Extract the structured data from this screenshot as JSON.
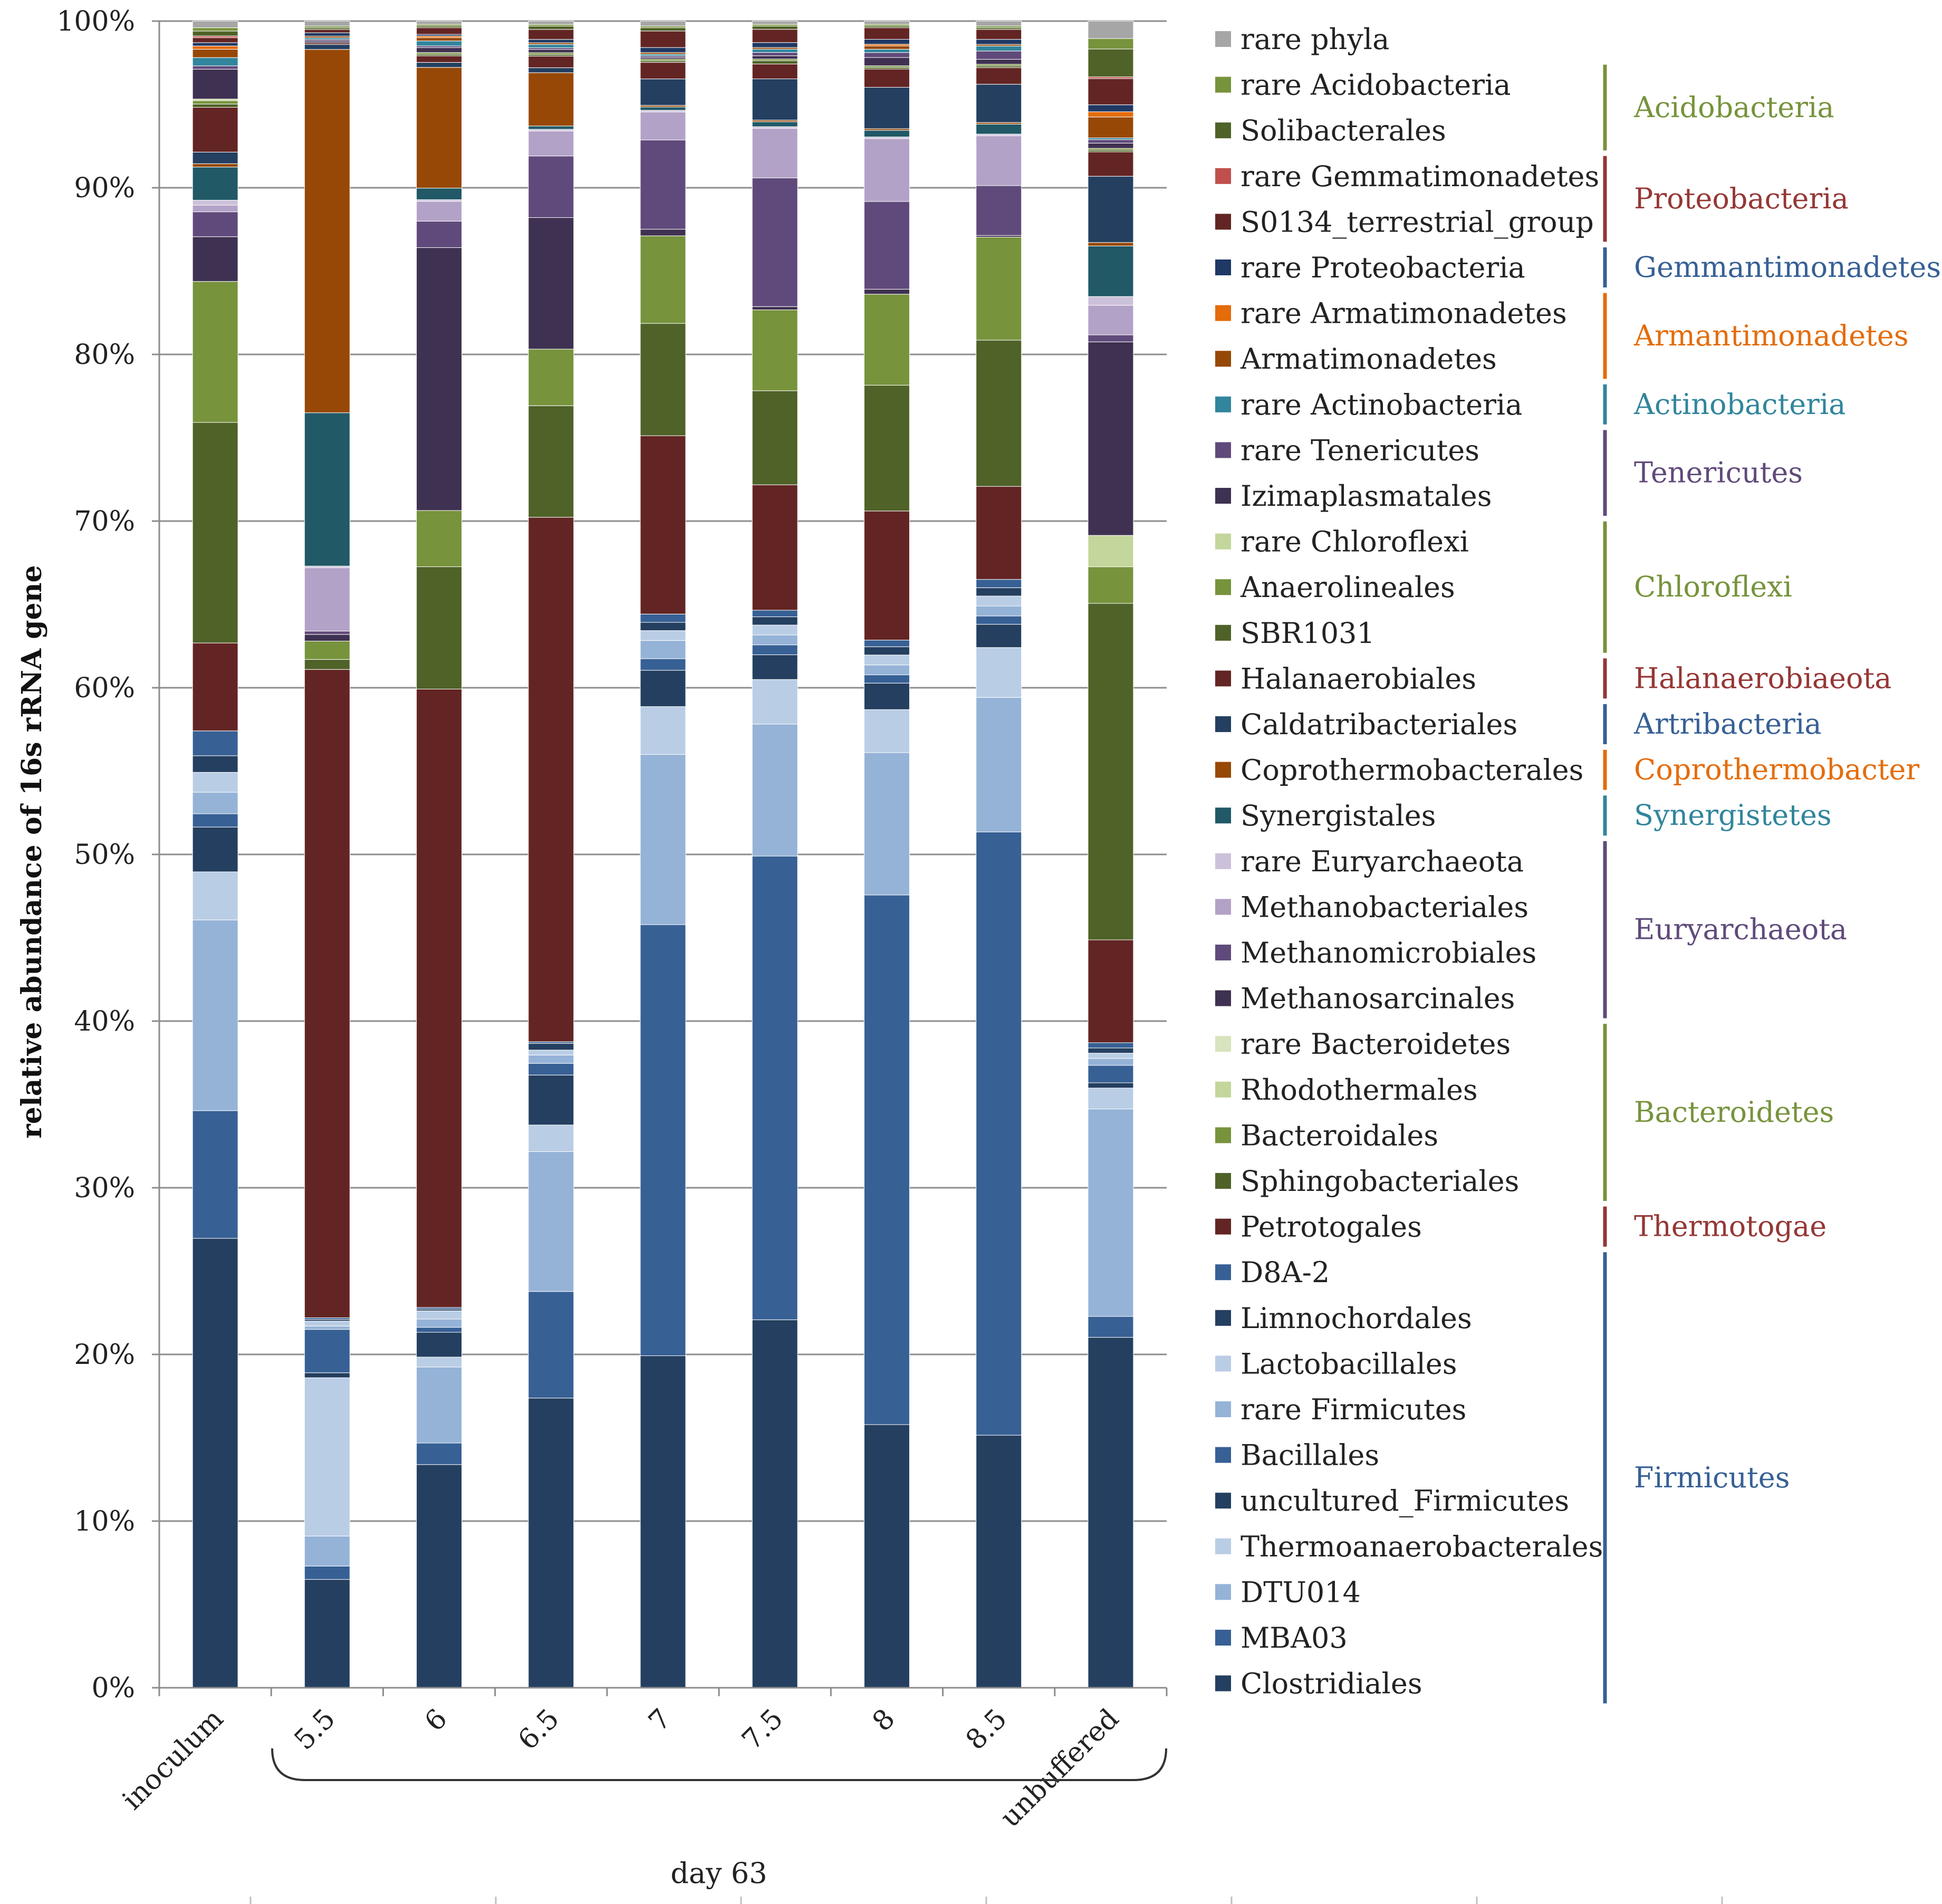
{
  "chart_data": {
    "type": "bar",
    "stacked": true,
    "normalized": true,
    "title": "",
    "ylabel": "relative abundance of 16s rRNA gene",
    "xlabel": "day 63",
    "ylim": [
      0,
      100
    ],
    "yticks": [
      "0%",
      "10%",
      "20%",
      "30%",
      "40%",
      "50%",
      "60%",
      "70%",
      "80%",
      "90%",
      "100%"
    ],
    "grid": true,
    "legend_position": "right",
    "categories": [
      "inoculum",
      "5.5",
      "6",
      "6.5",
      "7",
      "7.5",
      "8",
      "8.5",
      "unbuffered"
    ],
    "series": [
      {
        "name": "Clostridiales",
        "color": "#243F60",
        "values": [
          27.1,
          6.5,
          13.5,
          17.4,
          20.1,
          22.3,
          15.9,
          15.2,
          20.1
        ]
      },
      {
        "name": "MBA03",
        "color": "#376095",
        "values": [
          7.7,
          0.8,
          1.3,
          6.4,
          26.1,
          28.1,
          32.0,
          36.3,
          1.2
        ]
      },
      {
        "name": "DTU014",
        "color": "#95B3D7",
        "values": [
          11.5,
          1.8,
          4.6,
          8.4,
          10.3,
          8.0,
          8.6,
          8.1,
          11.9
        ]
      },
      {
        "name": "Thermoanaerobacterales",
        "color": "#B9CDE5",
        "values": [
          2.9,
          9.5,
          0.6,
          1.6,
          2.9,
          2.7,
          2.6,
          3.0,
          1.2
        ]
      },
      {
        "name": "uncultured_Firmicutes",
        "color": "#243F60",
        "values": [
          2.7,
          0.3,
          1.5,
          3.0,
          2.2,
          1.5,
          1.6,
          1.4,
          0.3
        ]
      },
      {
        "name": "Bacillales",
        "color": "#376095",
        "values": [
          0.8,
          2.6,
          0.3,
          0.7,
          0.7,
          0.6,
          0.5,
          0.5,
          1.0
        ]
      },
      {
        "name": "rare Firmicutes",
        "color": "#95B3D7",
        "values": [
          1.3,
          0.2,
          0.5,
          0.5,
          1.1,
          0.6,
          0.6,
          0.6,
          0.4
        ]
      },
      {
        "name": "Lactobacillales",
        "color": "#B9CDE5",
        "values": [
          1.2,
          0.3,
          0.5,
          0.3,
          0.6,
          0.6,
          0.6,
          0.6,
          0.3
        ]
      },
      {
        "name": "Limnochordales",
        "color": "#243F60",
        "values": [
          1.0,
          0.1,
          0.1,
          0.4,
          0.5,
          0.5,
          0.5,
          0.5,
          0.3
        ]
      },
      {
        "name": "D8A-2",
        "color": "#376095",
        "values": [
          1.5,
          0.1,
          0.1,
          0.1,
          0.5,
          0.4,
          0.4,
          0.5,
          0.3
        ]
      },
      {
        "name": "Petrotogales",
        "color": "#632523",
        "values": [
          5.3,
          38.9,
          37.4,
          31.5,
          10.8,
          7.6,
          7.8,
          5.6,
          5.9
        ]
      },
      {
        "name": "Sphingobacteriales",
        "color": "#4F6228",
        "values": [
          13.3,
          0.6,
          7.4,
          6.7,
          6.8,
          5.7,
          7.6,
          8.8,
          19.3
        ]
      },
      {
        "name": "Bacteroidales",
        "color": "#77933C",
        "values": [
          8.5,
          1.1,
          3.4,
          3.4,
          5.3,
          4.9,
          5.5,
          6.2,
          2.1
        ]
      },
      {
        "name": "Rhodothermales",
        "color": "#C3D69B",
        "values": [
          0.0,
          0.0,
          0.0,
          0.0,
          0.0,
          0.0,
          0.0,
          0.0,
          1.8
        ]
      },
      {
        "name": "rare Bacteroidetes",
        "color": "#D7E4BD",
        "values": [
          0.0,
          0.0,
          0.0,
          0.0,
          0.0,
          0.0,
          0.0,
          0.0,
          0.0
        ]
      },
      {
        "name": "Methanosarcinales",
        "color": "#3F3151",
        "values": [
          2.7,
          0.4,
          15.9,
          7.9,
          0.4,
          0.2,
          0.3,
          0.1,
          11.1
        ]
      },
      {
        "name": "Methanomicrobiales",
        "color": "#604A7B",
        "values": [
          1.5,
          0.2,
          1.6,
          3.7,
          5.4,
          7.8,
          5.3,
          3.0,
          0.4
        ]
      },
      {
        "name": "Methanobacteriales",
        "color": "#B3A2C7",
        "values": [
          0.4,
          3.8,
          1.2,
          1.5,
          1.7,
          3.0,
          3.8,
          3.0,
          1.7
        ]
      },
      {
        "name": "rare Euryarchaeota",
        "color": "#CCC1DA",
        "values": [
          0.3,
          0.1,
          0.1,
          0.1,
          0.1,
          0.1,
          0.1,
          0.1,
          0.5
        ]
      },
      {
        "name": "Synergistales",
        "color": "#215967",
        "values": [
          2.0,
          9.2,
          0.7,
          0.2,
          0.2,
          0.3,
          0.4,
          0.6,
          2.9
        ]
      },
      {
        "name": "Coprothermobacterales",
        "color": "#974806",
        "values": [
          0.2,
          21.8,
          7.3,
          3.2,
          0.1,
          0.1,
          0.1,
          0.1,
          0.2
        ]
      },
      {
        "name": "Caldatribacteriales",
        "color": "#243F60",
        "values": [
          0.7,
          0.3,
          0.3,
          0.3,
          1.6,
          2.5,
          2.5,
          2.3,
          3.8
        ]
      },
      {
        "name": "Halanaerobiales",
        "color": "#632523",
        "values": [
          2.7,
          0.1,
          0.4,
          0.7,
          1.0,
          0.9,
          1.1,
          1.0,
          1.4
        ]
      },
      {
        "name": "SBR1031",
        "color": "#4F6228",
        "values": [
          0.2,
          0.0,
          0.1,
          0.1,
          0.1,
          0.2,
          0.1,
          0.1,
          0.1
        ]
      },
      {
        "name": "Anaerolineales",
        "color": "#77933C",
        "values": [
          0.2,
          0.0,
          0.1,
          0.1,
          0.1,
          0.1,
          0.1,
          0.1,
          0.1
        ]
      },
      {
        "name": "rare Chloroflexi",
        "color": "#C3D69B",
        "values": [
          0.1,
          0.0,
          0.0,
          0.0,
          0.0,
          0.0,
          0.0,
          0.0,
          0.0
        ]
      },
      {
        "name": "Izimaplasmatales",
        "color": "#3F3151",
        "values": [
          1.8,
          0.1,
          0.3,
          0.2,
          0.1,
          0.2,
          0.5,
          0.3,
          0.3
        ]
      },
      {
        "name": "rare Tenericutes",
        "color": "#604A7B",
        "values": [
          0.2,
          0.1,
          0.1,
          0.1,
          0.1,
          0.2,
          0.3,
          0.5,
          0.2
        ]
      },
      {
        "name": "rare Actinobacteria",
        "color": "#31859C",
        "values": [
          0.5,
          0.1,
          0.3,
          0.2,
          0.1,
          0.2,
          0.2,
          0.3,
          0.1
        ]
      },
      {
        "name": "Armatimonadetes",
        "color": "#974806",
        "values": [
          0.5,
          0.1,
          0.2,
          0.1,
          0.1,
          0.1,
          0.2,
          0.1,
          1.2
        ]
      },
      {
        "name": "rare Armatimonadetes",
        "color": "#E46C0A",
        "values": [
          0.2,
          0.0,
          0.1,
          0.0,
          0.0,
          0.0,
          0.1,
          0.0,
          0.3
        ]
      },
      {
        "name": "rare Proteobacteria",
        "color": "#1F3864",
        "values": [
          0.2,
          0.2,
          0.1,
          0.2,
          0.3,
          0.3,
          0.3,
          0.3,
          0.4
        ]
      },
      {
        "name": "S0134_terrestrial_group",
        "color": "#632523",
        "values": [
          0.3,
          0.2,
          0.4,
          0.6,
          1.0,
          0.8,
          0.7,
          0.6,
          1.5
        ]
      },
      {
        "name": "rare Gemmatimonadetes",
        "color": "#C0504D",
        "values": [
          0.1,
          0.0,
          0.0,
          0.0,
          0.0,
          0.0,
          0.0,
          0.0,
          0.1
        ]
      },
      {
        "name": "Solibacterales",
        "color": "#4F6228",
        "values": [
          0.3,
          0.1,
          0.1,
          0.2,
          0.2,
          0.2,
          0.1,
          0.1,
          1.6
        ]
      },
      {
        "name": "rare Acidobacteria",
        "color": "#77933C",
        "values": [
          0.2,
          0.1,
          0.1,
          0.1,
          0.1,
          0.1,
          0.1,
          0.1,
          0.6
        ]
      },
      {
        "name": "rare phyla",
        "color": "#A6A6A6",
        "values": [
          0.4,
          0.3,
          0.2,
          0.2,
          0.3,
          0.2,
          0.2,
          0.3,
          1.0
        ]
      }
    ],
    "legend_order": [
      "rare phyla",
      "rare Acidobacteria",
      "Solibacterales",
      "rare Gemmatimonadetes",
      "S0134_terrestrial_group",
      "rare Proteobacteria",
      "rare Armatimonadetes",
      "Armatimonadetes",
      "rare Actinobacteria",
      "rare Tenericutes",
      "Izimaplasmatales",
      "rare Chloroflexi",
      "Anaerolineales",
      "SBR1031",
      "Halanaerobiales",
      "Caldatribacteriales",
      "Coprothermobacterales",
      "Synergistales",
      "rare Euryarchaeota",
      "Methanobacteriales",
      "Methanomicrobiales",
      "Methanosarcinales",
      "rare Bacteroidetes",
      "Rhodothermales",
      "Bacteroidales",
      "Sphingobacteriales",
      "Petrotogales",
      "D8A-2",
      "Limnochordales",
      "Lactobacillales",
      "rare Firmicutes",
      "Bacillales",
      "uncultured_Firmicutes",
      "Thermoanaerobacterales",
      "DTU014",
      "MBA03",
      "Clostridiales"
    ],
    "phylum_groups": [
      {
        "name": "Acidobacteria",
        "color": "#77933C",
        "members": [
          "rare Acidobacteria",
          "Solibacterales"
        ]
      },
      {
        "name": "Proteobacteria",
        "color": "#953735",
        "members": [
          "rare Gemmatimonadetes",
          "S0134_terrestrial_group"
        ]
      },
      {
        "name": "Gemmantimonadetes",
        "color": "#376095",
        "members": [
          "rare Proteobacteria"
        ]
      },
      {
        "name": "Armantimonadetes",
        "color": "#E46C0A",
        "members": [
          "rare Armatimonadetes",
          "Armatimonadetes"
        ]
      },
      {
        "name": "Actinobacteria",
        "color": "#31859C",
        "members": [
          "rare Actinobacteria"
        ]
      },
      {
        "name": "Tenericutes",
        "color": "#604A7B",
        "members": [
          "rare Tenericutes",
          "Izimaplasmatales"
        ]
      },
      {
        "name": "Chloroflexi",
        "color": "#77933C",
        "members": [
          "rare Chloroflexi",
          "Anaerolineales",
          "SBR1031"
        ]
      },
      {
        "name": "Halanaerobiaeota",
        "color": "#953735",
        "members": [
          "Halanaerobiales"
        ]
      },
      {
        "name": "Artribacteria",
        "color": "#376095",
        "members": [
          "Caldatribacteriales"
        ]
      },
      {
        "name": "Coprothermobacter",
        "color": "#E46C0A",
        "members": [
          "Coprothermobacterales"
        ]
      },
      {
        "name": "Synergistetes",
        "color": "#31859C",
        "members": [
          "Synergistales"
        ]
      },
      {
        "name": "Euryarchaeota",
        "color": "#604A7B",
        "members": [
          "rare Euryarchaeota",
          "Methanobacteriales",
          "Methanomicrobiales",
          "Methanosarcinales"
        ]
      },
      {
        "name": "Bacteroidetes",
        "color": "#77933C",
        "members": [
          "rare Bacteroidetes",
          "Rhodothermales",
          "Bacteroidales",
          "Sphingobacteriales"
        ]
      },
      {
        "name": "Thermotogae",
        "color": "#953735",
        "members": [
          "Petrotogales"
        ]
      },
      {
        "name": "Firmicutes",
        "color": "#376095",
        "members": [
          "D8A-2",
          "Limnochordales",
          "Lactobacillales",
          "rare Firmicutes",
          "Bacillales",
          "uncultured_Firmicutes",
          "Thermoanaerobacterales",
          "DTU014",
          "MBA03",
          "Clostridiales"
        ]
      }
    ]
  }
}
